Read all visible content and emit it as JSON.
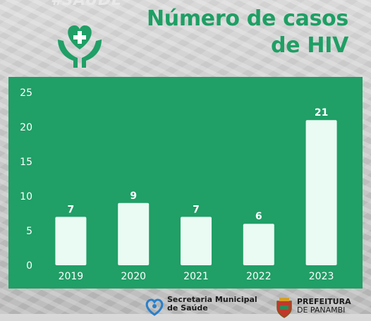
{
  "header": {
    "hashtag": "#SAÚDE",
    "title_line1": "Número de casos",
    "title_line2": "de HIV"
  },
  "colors": {
    "accent": "#209f66",
    "bar": "#e9fbf3",
    "text_dark": "#1a1a1a"
  },
  "icons": {
    "logo": "heart-cross-hands-icon",
    "secretaria": "health-heart-icon",
    "prefeitura": "crest-icon"
  },
  "chart_data": {
    "type": "bar",
    "categories": [
      "2019",
      "2020",
      "2021",
      "2022",
      "2023"
    ],
    "values": [
      7,
      9,
      7,
      6,
      21
    ],
    "title": "Número de casos de HIV",
    "xlabel": "",
    "ylabel": "",
    "ylim": [
      0,
      25
    ],
    "yticks": [
      0,
      5,
      10,
      15,
      20,
      25
    ],
    "grid": false,
    "legend": "none"
  },
  "footer": {
    "secretaria_line1": "Secretaria Municipal",
    "secretaria_line2": "de Saúde",
    "prefeitura_line1": "PREFEITURA",
    "prefeitura_line2": "DE PANAMBI"
  }
}
